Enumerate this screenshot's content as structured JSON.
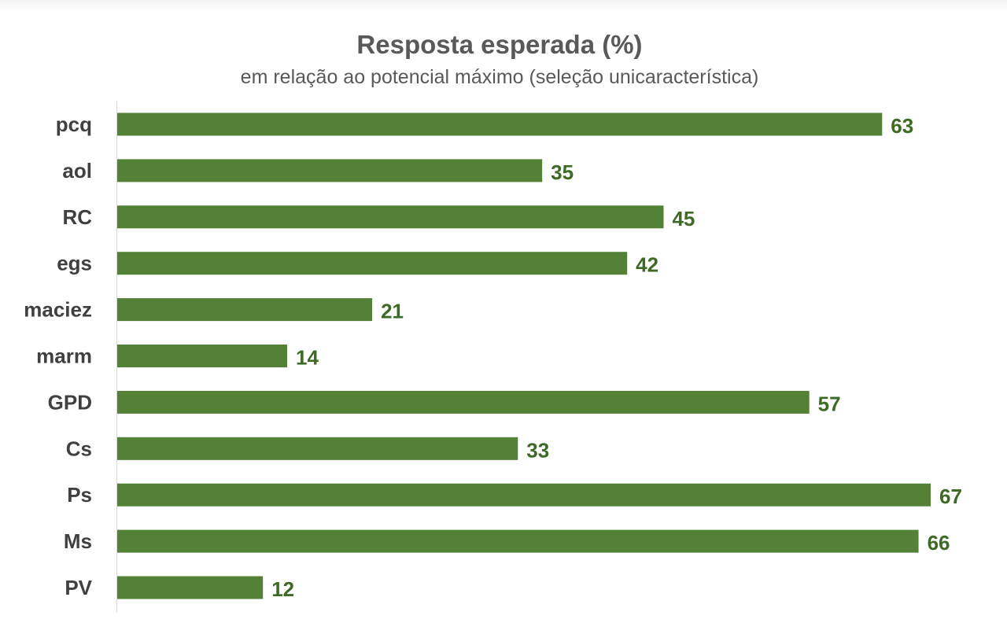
{
  "chart_data": {
    "type": "bar",
    "orientation": "horizontal",
    "title": "Resposta esperada (%)",
    "subtitle": "em relação ao potencial máximo (seleção unicaracterística)",
    "categories": [
      "pcq",
      "aol",
      "RC",
      "egs",
      "maciez",
      "marm",
      "GPD",
      "Cs",
      "Ps",
      "Ms",
      "PV"
    ],
    "values": [
      63,
      35,
      45,
      42,
      21,
      14,
      57,
      33,
      67,
      66,
      12
    ],
    "xlim": [
      0,
      67
    ],
    "bar_color": "#538135",
    "label_color": "#3f6a25",
    "grid": false,
    "legend": "none"
  }
}
